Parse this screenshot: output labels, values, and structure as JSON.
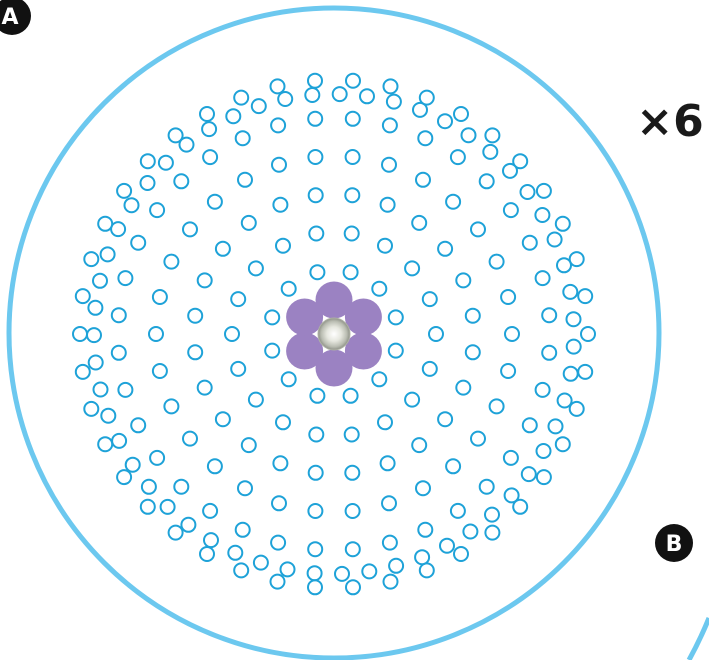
{
  "labels": {
    "panel_a": "A",
    "panel_b": "B",
    "multiplier": "×6"
  },
  "colors": {
    "outer_ring": "#6cc8ef",
    "small_ring": "#1ea2d8",
    "inner_fiber": "#9b82c2",
    "core_center": "#cfd1c6",
    "badge": "#111111",
    "badge_text": "#ffffff",
    "multiplier_text": "#1a1a1a"
  },
  "structure": {
    "small_ring_count": 217,
    "inner_fiber_count": 6,
    "core_count": 1
  }
}
